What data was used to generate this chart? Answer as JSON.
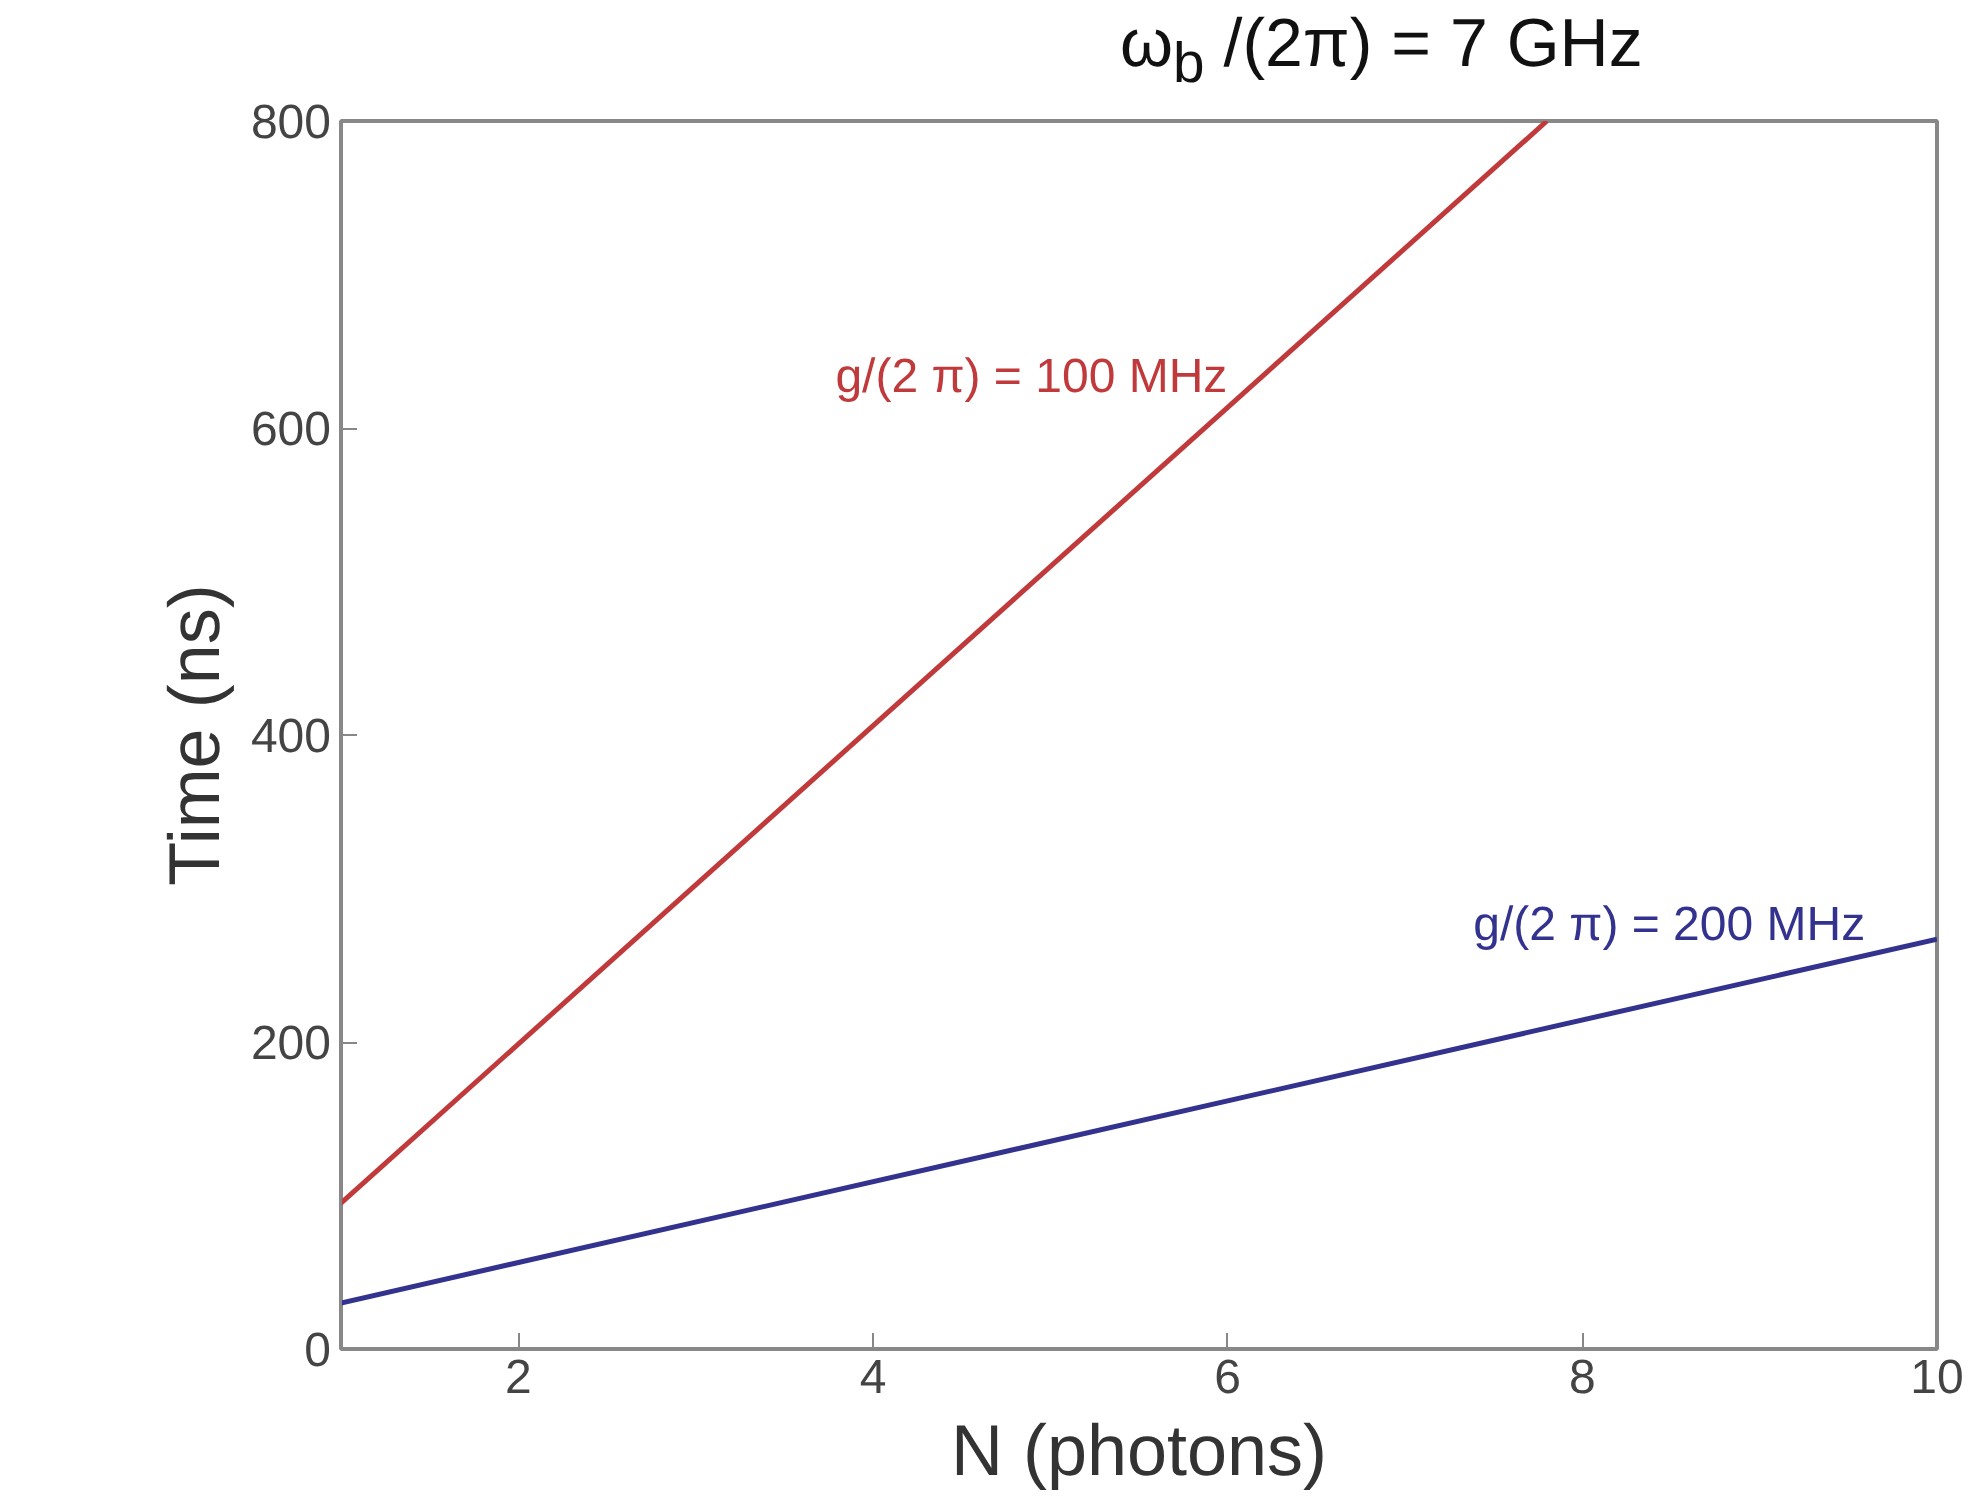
{
  "chart_data": {
    "type": "line",
    "title": "ω$_{b}$ /(2π) = 7 GHz",
    "xlabel": "N (photons)",
    "ylabel": "Time (ns)",
    "xlim": [
      1,
      10
    ],
    "ylim": [
      0,
      800
    ],
    "xticks": [
      2,
      4,
      6,
      8,
      10
    ],
    "yticks": [
      0,
      200,
      400,
      600,
      800
    ],
    "grid": false,
    "legend": false,
    "series": [
      {
        "name": "g/(2 π) = 100 MHz",
        "color": "#c0393b",
        "x": [
          1,
          7.8
        ],
        "values": [
          95,
          800
        ]
      },
      {
        "name": "g/(2 π) = 200 MHz",
        "color": "#33338f",
        "x": [
          1,
          10
        ],
        "values": [
          30,
          267
        ]
      }
    ]
  }
}
